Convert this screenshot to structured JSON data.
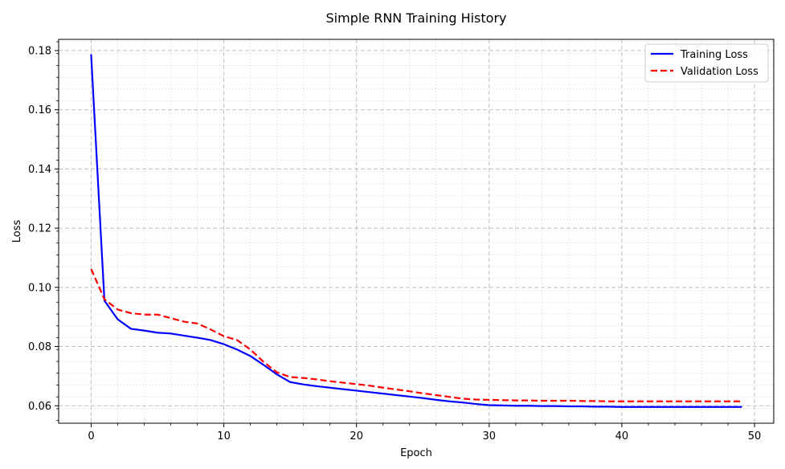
{
  "chart_data": {
    "type": "line",
    "title": "Simple RNN Training History",
    "xlabel": "Epoch",
    "ylabel": "Loss",
    "xlim": [
      -2.45,
      51.45
    ],
    "ylim": [
      0.0541,
      0.1838
    ],
    "x_ticks": [
      0,
      10,
      20,
      30,
      40,
      50
    ],
    "y_ticks": [
      0.06,
      0.08,
      0.1,
      0.12,
      0.14,
      0.16,
      0.18
    ],
    "x_tick_labels": [
      "0",
      "10",
      "20",
      "30",
      "40",
      "50"
    ],
    "y_tick_labels": [
      "0.06",
      "0.08",
      "0.10",
      "0.12",
      "0.14",
      "0.16",
      "0.18"
    ],
    "grid": true,
    "legend_position": "upper right",
    "x": [
      0,
      1,
      2,
      3,
      4,
      5,
      6,
      7,
      8,
      9,
      10,
      11,
      12,
      13,
      14,
      15,
      16,
      17,
      18,
      19,
      20,
      21,
      22,
      23,
      24,
      25,
      26,
      27,
      28,
      29,
      30,
      31,
      32,
      33,
      34,
      35,
      36,
      37,
      38,
      39,
      40,
      41,
      42,
      43,
      44,
      45,
      46,
      47,
      48,
      49
    ],
    "series": [
      {
        "name": "Training Loss",
        "color": "#0000ff",
        "style": "solid",
        "values": [
          0.1785,
          0.0955,
          0.0892,
          0.086,
          0.0854,
          0.0847,
          0.0844,
          0.0837,
          0.083,
          0.0822,
          0.0808,
          0.079,
          0.0768,
          0.0738,
          0.0706,
          0.068,
          0.0672,
          0.0666,
          0.0661,
          0.0656,
          0.0651,
          0.0646,
          0.0641,
          0.0636,
          0.0631,
          0.0626,
          0.062,
          0.0615,
          0.0611,
          0.0606,
          0.0602,
          0.0601,
          0.06,
          0.06,
          0.0599,
          0.0599,
          0.0598,
          0.0598,
          0.0597,
          0.0597,
          0.0596,
          0.0596,
          0.0596,
          0.0596,
          0.0596,
          0.0596,
          0.0596,
          0.0596,
          0.0596,
          0.0596
        ]
      },
      {
        "name": "Validation Loss",
        "color": "#ff0000",
        "style": "dashed",
        "values": [
          0.1062,
          0.096,
          0.0925,
          0.0913,
          0.0908,
          0.0908,
          0.0896,
          0.0884,
          0.0878,
          0.0858,
          0.0835,
          0.0822,
          0.079,
          0.0748,
          0.0713,
          0.0697,
          0.0694,
          0.0689,
          0.0683,
          0.0678,
          0.0673,
          0.0668,
          0.0661,
          0.0655,
          0.0649,
          0.0642,
          0.0636,
          0.063,
          0.0624,
          0.0621,
          0.062,
          0.0619,
          0.0618,
          0.0618,
          0.0617,
          0.0617,
          0.0617,
          0.0616,
          0.0616,
          0.0615,
          0.0615,
          0.0615,
          0.0615,
          0.0615,
          0.0615,
          0.0615,
          0.0615,
          0.0615,
          0.0615,
          0.0615
        ]
      }
    ]
  }
}
